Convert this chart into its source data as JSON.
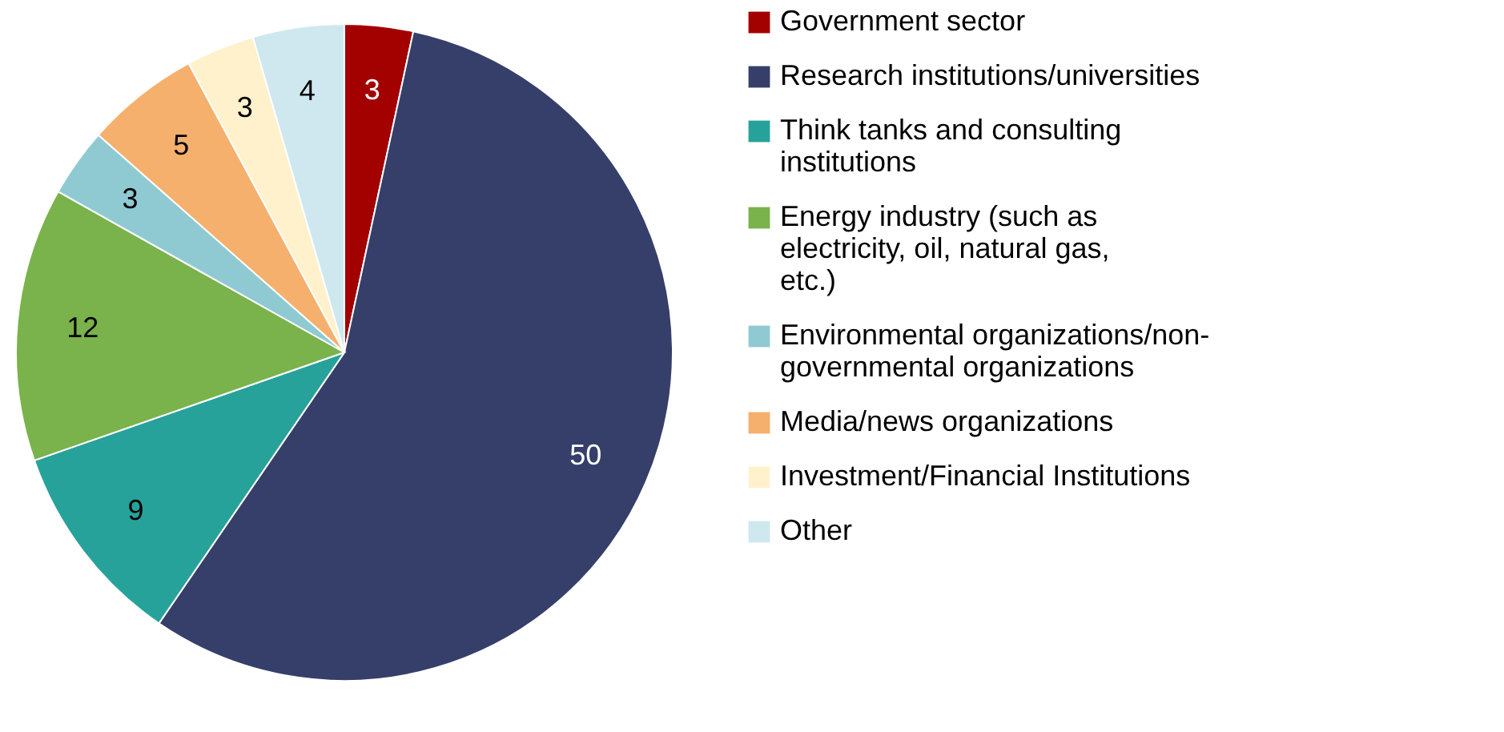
{
  "chart_data": {
    "type": "pie",
    "categories": [
      "Government sector",
      "Research institutions/universities",
      "Think tanks and consulting institutions",
      "Energy industry (such as electricity, oil, natural gas, etc.)",
      "Environmental organizations/non-governmental organizations",
      "Media/news organizations",
      "Investment/Financial Institutions",
      "Other"
    ],
    "values": [
      3,
      50,
      9,
      12,
      3,
      5,
      3,
      4
    ],
    "colors": [
      "#a30000",
      "#353f69",
      "#27a29b",
      "#7ab24b",
      "#8fcad3",
      "#f5b06d",
      "#fff1cc",
      "#cfe8ef"
    ],
    "data_labels": true,
    "legend": "right"
  }
}
